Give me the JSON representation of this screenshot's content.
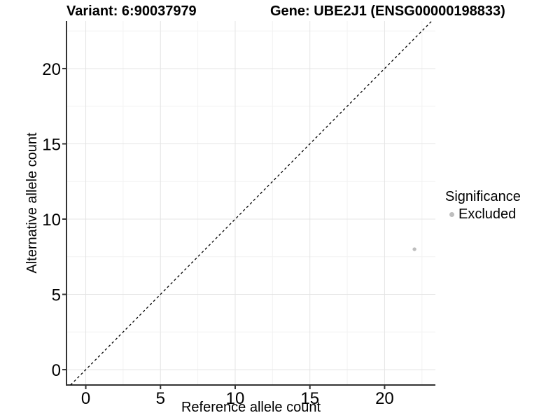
{
  "chart_data": {
    "type": "scatter",
    "title_left": "Variant: 6:90037979",
    "title_right": "Gene: UBE2J1 (ENSG00000198833)",
    "xlabel": "Reference allele count",
    "ylabel": "Alternative allele count",
    "xlim": [
      -1.29,
      23.4
    ],
    "ylim": [
      -1.02,
      23.16
    ],
    "x_ticks": [
      0,
      5,
      10,
      15,
      20
    ],
    "y_ticks": [
      0,
      5,
      10,
      15,
      20
    ],
    "x_minor_gridlines": [
      2.5,
      7.5,
      12.5,
      17.5,
      22.5
    ],
    "y_minor_gridlines": [
      2.5,
      7.5,
      12.5,
      17.5,
      22.5
    ],
    "grid": "major+minor",
    "identity_line": {
      "equation": "y = x",
      "style": "dashed",
      "color": "#000000"
    },
    "series": [
      {
        "name": "Excluded",
        "color": "#BEBEBE",
        "points": [
          {
            "x": 22,
            "y": 8
          }
        ]
      }
    ],
    "legend": {
      "title": "Significance",
      "position": "right",
      "entries": [
        {
          "label": "Excluded",
          "color": "#BEBEBE"
        }
      ]
    }
  },
  "colors": {
    "background": "#FFFFFF",
    "grid_major": "#E4E4E4",
    "grid_minor": "#F2F2F2",
    "axis": "#333333",
    "tick_text": "#000000",
    "point": "#BEBEBE",
    "identity_line": "#000000"
  }
}
